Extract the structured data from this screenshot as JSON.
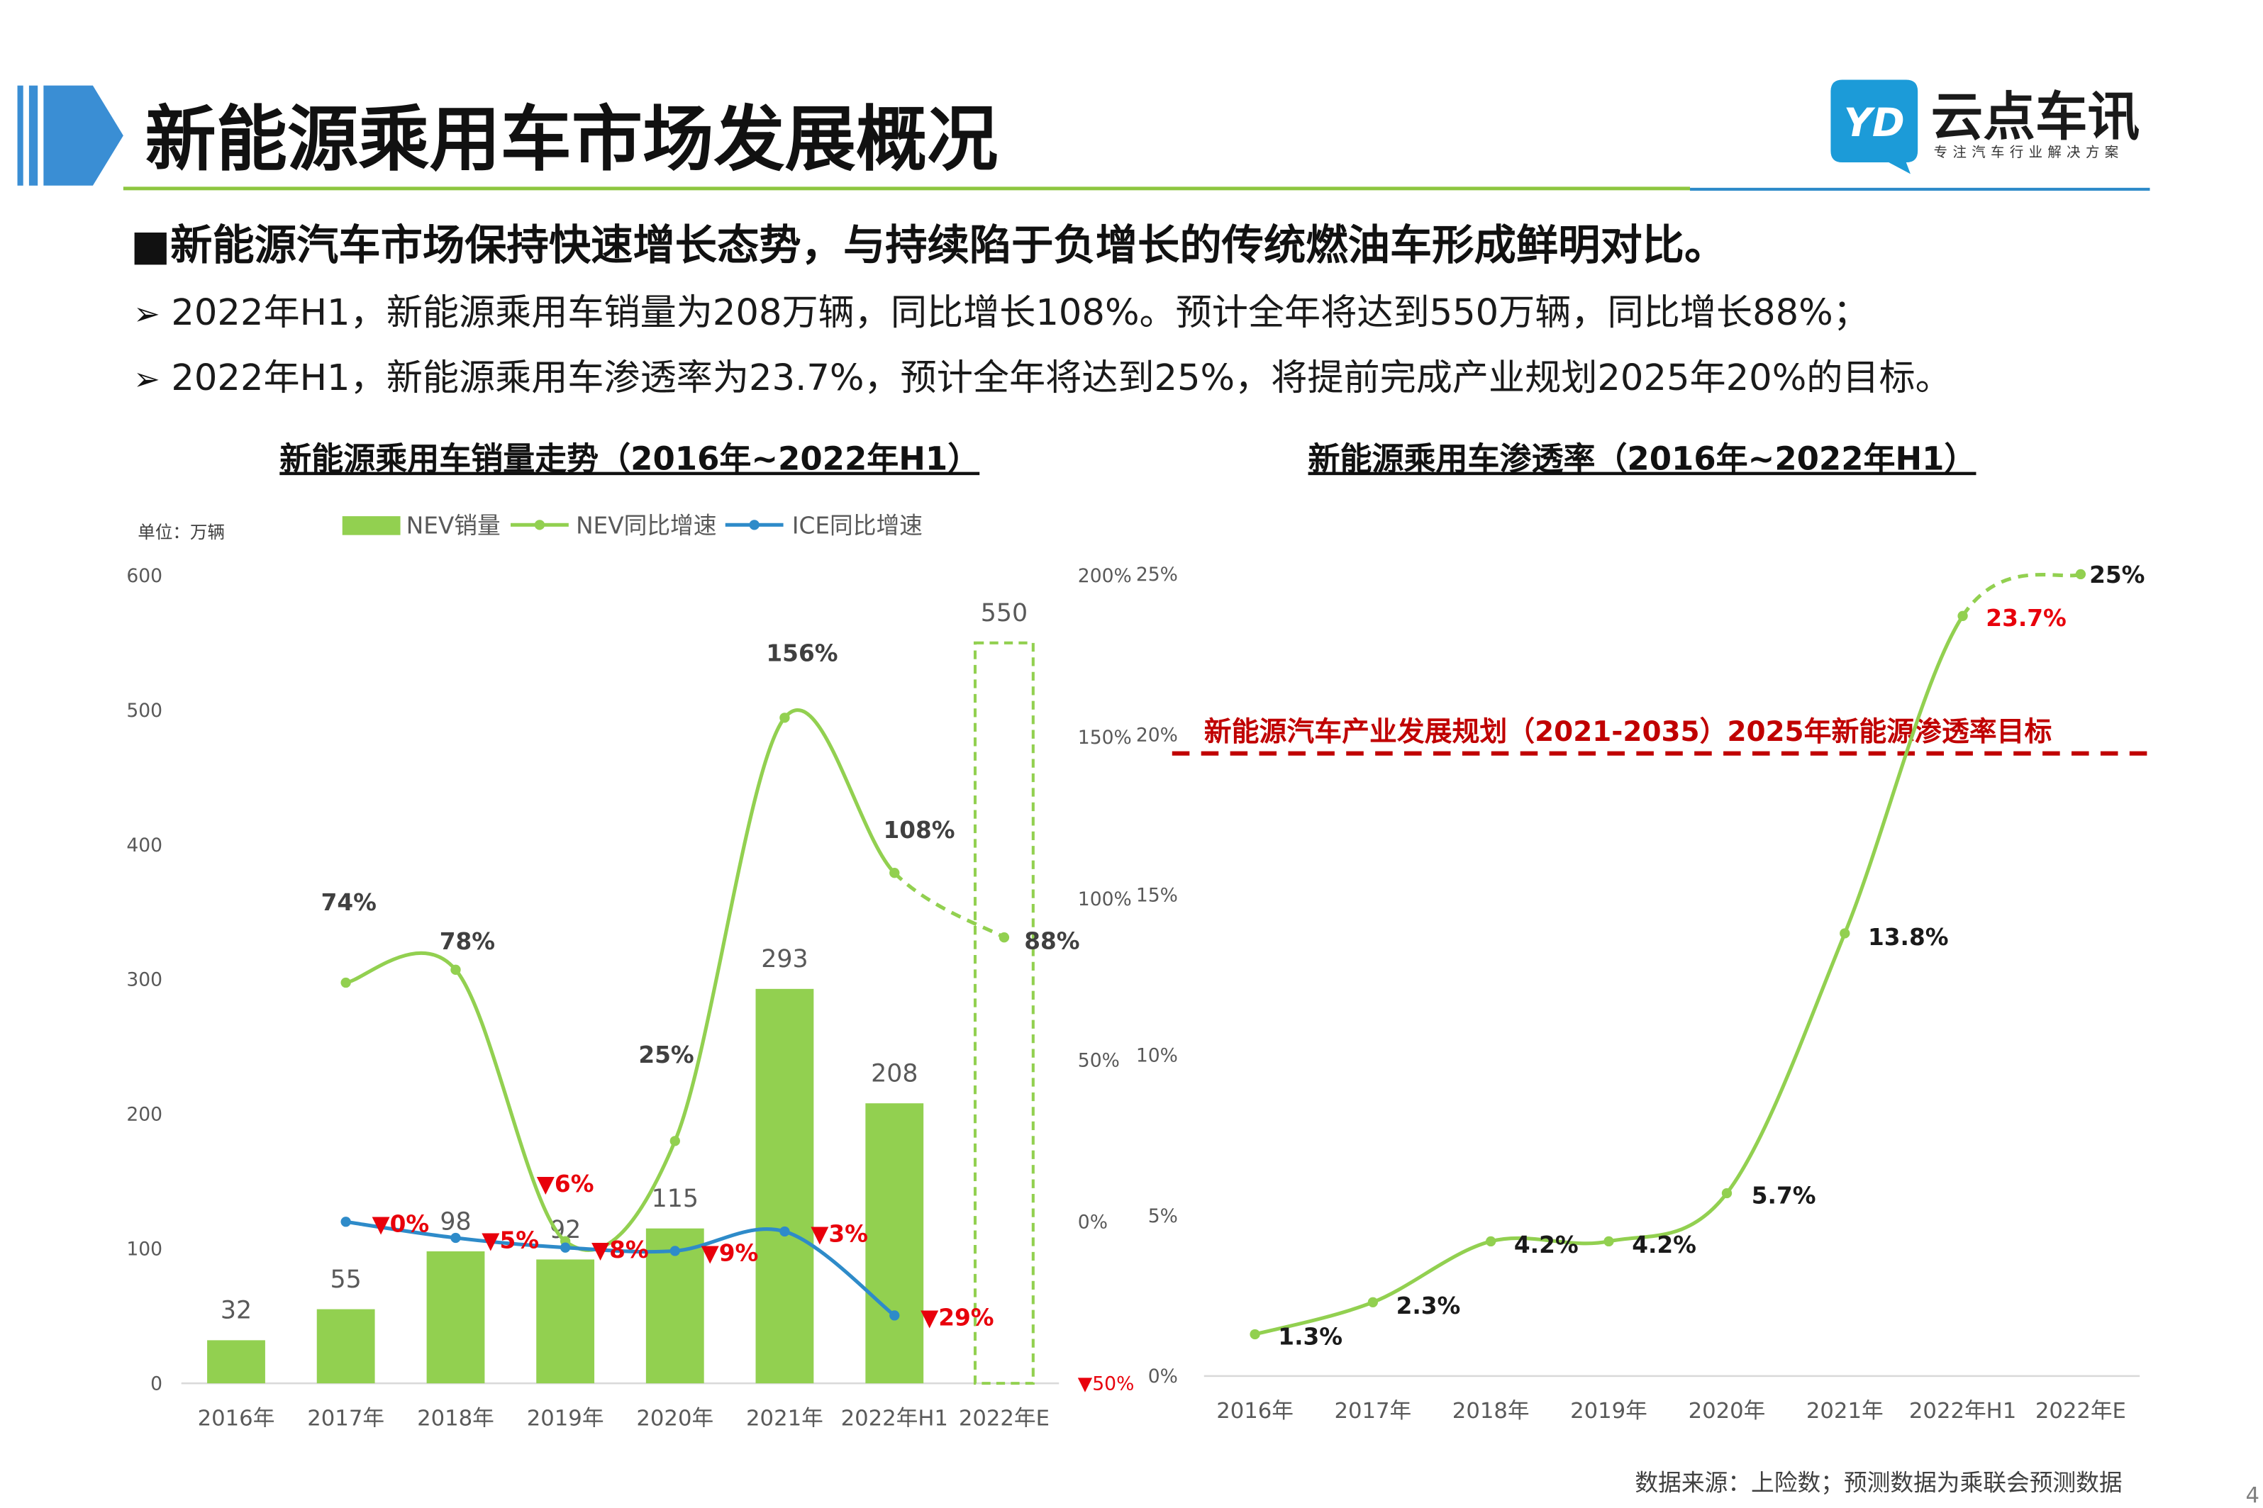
{
  "header": {
    "title": "新能源乘用车市场发展概况"
  },
  "logo": {
    "mark": "YD",
    "name": "云点车讯",
    "slogan": "专注汽车行业解决方案"
  },
  "summary": {
    "heading": "■新能源汽车市场保持快速增长态势，与持续陷于负增长的传统燃油车形成鲜明对比。",
    "bullet_marker": "➢",
    "bullets": [
      "2022年H1，新能源乘用车销量为208万辆，同比增长108%。预计全年将达到550万辆，同比增长88%；",
      "2022年H1，新能源乘用车渗透率为23.7%，预计全年将达到25%，将提前完成产业规划2025年20%的目标。"
    ]
  },
  "colors": {
    "accent_blue": "#3a8ed4",
    "logo_blue": "#1c9bd8",
    "divider_green": "#8dc63f",
    "divider_blue": "#2e8bc9",
    "nev_green": "#92d050",
    "ice_blue": "#2e8bc9",
    "decline_red": "#e8000b",
    "target_red": "#c00000",
    "axis_text": "#595959"
  },
  "chart_data": [
    {
      "type": "bar",
      "title": "新能源乘用车销量走势（2016年~2022年H1）",
      "unit_label": "单位：万辆",
      "legend": "top",
      "categories": [
        "2016年",
        "2017年",
        "2018年",
        "2019年",
        "2020年",
        "2021年",
        "2022年H1",
        "2022年E"
      ],
      "dashed_categories": [
        "2022年E"
      ],
      "y_left": {
        "range": [
          0,
          600
        ],
        "ticks": [
          600,
          500,
          400,
          300,
          200,
          100,
          0
        ],
        "tick_labels": [
          "600",
          "500",
          "400",
          "300",
          "200",
          "100",
          "0"
        ]
      },
      "y_right": {
        "range": [
          -50,
          200
        ],
        "ticks": [
          200,
          150,
          100,
          50,
          0,
          -50
        ],
        "tick_labels": [
          "200%",
          "150%",
          "100%",
          "50%",
          "0%",
          "▼50%"
        ]
      },
      "series": [
        {
          "name": "NEV销量",
          "type": "bar",
          "axis": "left",
          "values": [
            32,
            55,
            98,
            92,
            115,
            293,
            208,
            550
          ],
          "labels": [
            "32",
            "55",
            "98",
            "92",
            "115",
            "293",
            "208",
            "550"
          ]
        },
        {
          "name": "NEV同比增速",
          "type": "line",
          "axis": "right",
          "values": [
            null,
            74,
            78,
            -6,
            25,
            156,
            108,
            88
          ],
          "labels": [
            null,
            "74%",
            "78%",
            "▼6%",
            "25%",
            "156%",
            "108%",
            "88%"
          ],
          "dashed_from": "2022年H1"
        },
        {
          "name": "ICE同比增速",
          "type": "line",
          "axis": "right",
          "values": [
            null,
            0,
            -5,
            -8,
            -9,
            -3,
            -29,
            null
          ],
          "labels": [
            null,
            "▼0%",
            "▼5%",
            "▼8%",
            "▼9%",
            "▼3%",
            "▼29%",
            null
          ]
        }
      ]
    },
    {
      "type": "line",
      "title": "新能源乘用车渗透率（2016年~2022年H1）",
      "categories": [
        "2016年",
        "2017年",
        "2018年",
        "2019年",
        "2020年",
        "2021年",
        "2022年H1",
        "2022年E"
      ],
      "y": {
        "range": [
          0,
          25
        ],
        "ticks": [
          25,
          20,
          15,
          10,
          5,
          0
        ],
        "tick_labels": [
          "25%",
          "20%",
          "15%",
          "10%",
          "5%",
          "0%"
        ]
      },
      "series": [
        {
          "type": "line",
          "values": [
            1.3,
            2.3,
            4.2,
            4.2,
            5.7,
            13.8,
            23.7,
            25
          ],
          "labels": [
            "1.3%",
            "2.3%",
            "4.2%",
            "4.2%",
            "5.7%",
            "13.8%",
            "23.7%",
            "25%"
          ],
          "highlight_labels": [
            "23.7%"
          ],
          "dashed_from": "2022年H1"
        }
      ],
      "target": {
        "value": 20,
        "style": "dashed",
        "label": "新能源汽车产业发展规划（2021-2035）2025年新能源渗透率目标"
      }
    }
  ],
  "footer": {
    "source": "数据来源：上险数；预测数据为乘联会预测数据",
    "page": "4"
  }
}
